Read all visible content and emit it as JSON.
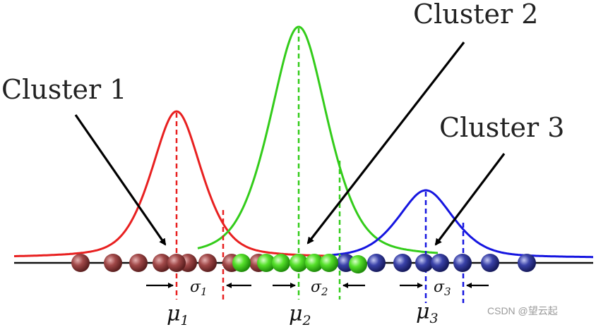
{
  "clusters": [
    {
      "label": "Cluster 1",
      "mu_symbol": "μ",
      "mu_sub": "1",
      "sigma_symbol": "σ",
      "sigma_sub": "1",
      "color": "#e82020",
      "point_color": "#8c3b3b",
      "point_highlight": "#d08a8a"
    },
    {
      "label": "Cluster 2",
      "mu_symbol": "μ",
      "mu_sub": "2",
      "sigma_symbol": "σ",
      "sigma_sub": "2",
      "color": "#33cc1a",
      "point_color": "#2fbf12",
      "point_highlight": "#b8ff9a"
    },
    {
      "label": "Cluster 3",
      "mu_symbol": "μ",
      "mu_sub": "3",
      "sigma_symbol": "σ",
      "sigma_sub": "3",
      "color": "#1515e0",
      "point_color": "#2a2f8e",
      "point_highlight": "#9aa0e8"
    }
  ],
  "watermark": "CSDN @望云起"
}
